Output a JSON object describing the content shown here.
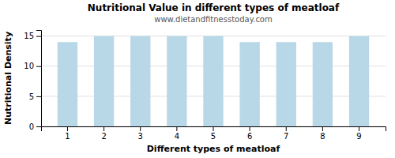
{
  "chart_data": {
    "type": "bar",
    "title": "Nutritional Value in different types of meatloaf",
    "subtitle": "www.dietandfitnesstoday.com",
    "xlabel": "Different types of meatloaf",
    "ylabel": "Nutritional Density",
    "categories": [
      1,
      2,
      3,
      4,
      5,
      6,
      7,
      8,
      9
    ],
    "values": [
      14.0,
      15.0,
      15.0,
      15.0,
      15.0,
      14.0,
      14.0,
      14.0,
      15.0
    ],
    "color": "#b8d8e8",
    "ylim": [
      0,
      16
    ],
    "yticks": [
      0,
      5,
      10,
      15
    ],
    "grid": true
  }
}
